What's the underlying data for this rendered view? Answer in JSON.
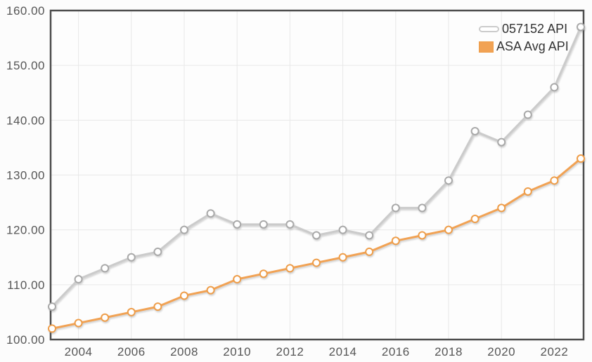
{
  "chart_data": {
    "type": "line",
    "title": "",
    "xlabel": "",
    "ylabel": "",
    "x": [
      2003,
      2004,
      2005,
      2006,
      2007,
      2008,
      2009,
      2010,
      2011,
      2012,
      2013,
      2014,
      2015,
      2016,
      2017,
      2018,
      2019,
      2020,
      2021,
      2022,
      2023
    ],
    "series": [
      {
        "name": "057152 API",
        "line_color": "#cbcbcb",
        "marker_stroke": "#a9a9a9",
        "marker_fill": "#ffffff",
        "values": [
          106,
          111,
          113,
          115,
          116,
          120,
          123,
          121,
          121,
          121,
          119,
          120,
          119,
          124,
          124,
          129,
          138,
          136,
          141,
          146,
          157
        ]
      },
      {
        "name": "ASA Avg API",
        "line_color": "#f1a254",
        "marker_stroke": "#ee9d49",
        "marker_fill": "#ffffff",
        "values": [
          102,
          103,
          104,
          105,
          106,
          108,
          109,
          111,
          112,
          113,
          114,
          115,
          116,
          118,
          119,
          120,
          122,
          124,
          127,
          129,
          133
        ]
      }
    ],
    "ylim": [
      100,
      160
    ],
    "y_ticks": [
      100,
      110,
      120,
      130,
      140,
      150,
      160
    ],
    "y_tick_labels": [
      "100.00",
      "110.00",
      "120.00",
      "130.00",
      "140.00",
      "150.00",
      "160.00"
    ],
    "x_ticks": [
      2004,
      2006,
      2008,
      2010,
      2012,
      2014,
      2016,
      2018,
      2020,
      2022
    ],
    "x_tick_labels": [
      "2004",
      "2006",
      "2008",
      "2010",
      "2012",
      "2014",
      "2016",
      "2018",
      "2020",
      "2022"
    ],
    "grid": true,
    "legend_position": "top-right-inside",
    "colors": {
      "plot_background": "#fdfdfd",
      "page_background": "#fcfcfc",
      "border": "#4d4d4d",
      "gridline": "#e8e8e8",
      "axis_label": "#565656",
      "legend_text": "#333333"
    }
  }
}
